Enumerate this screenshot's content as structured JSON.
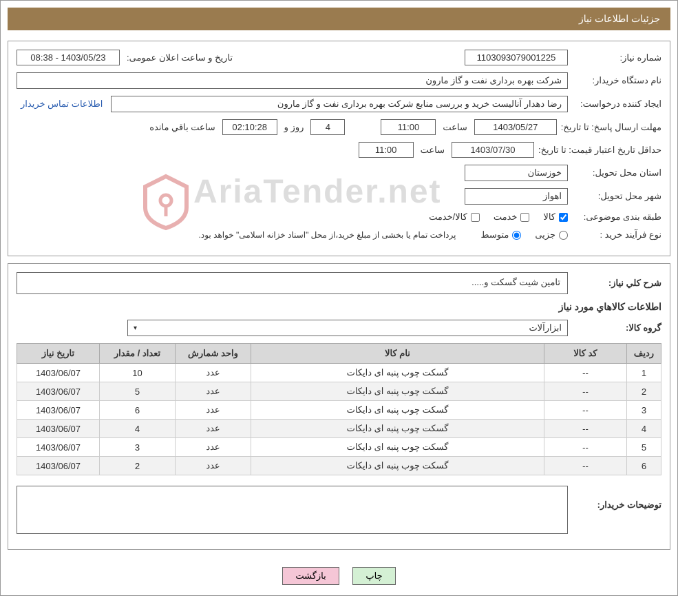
{
  "header": {
    "title": "جزئیات اطلاعات نیاز"
  },
  "form": {
    "need_number_label": "شماره نیاز:",
    "need_number": "1103093079001225",
    "announce_date_label": "تاریخ و ساعت اعلان عمومی:",
    "announce_date": "1403/05/23 - 08:38",
    "buyer_org_label": "نام دستگاه خریدار:",
    "buyer_org": "شرکت بهره برداری نفت و گاز مارون",
    "requester_label": "ایجاد کننده درخواست:",
    "requester": "رضا دهدار آنالیست خرید و بررسی منابع شرکت بهره برداری نفت و گاز مارون",
    "buyer_contact_link": "اطلاعات تماس خریدار",
    "response_deadline_label": "مهلت ارسال پاسخ: تا تاریخ:",
    "response_date": "1403/05/27",
    "time_label": "ساعت",
    "response_time": "11:00",
    "days_remaining": "4",
    "days_label": "روز و",
    "countdown": "02:10:28",
    "remaining_label": "ساعت باقي مانده",
    "price_validity_label": "حداقل تاریخ اعتبار قیمت: تا تاریخ:",
    "price_validity_date": "1403/07/30",
    "price_validity_time": "11:00",
    "delivery_province_label": "استان محل تحویل:",
    "delivery_province": "خوزستان",
    "delivery_city_label": "شهر محل تحویل:",
    "delivery_city": "اهواز",
    "classification_label": "طبقه بندی موضوعی:",
    "class_goods": "کالا",
    "class_service": "خدمت",
    "class_goods_service": "کالا/خدمت",
    "purchase_type_label": "نوع فرآیند خرید :",
    "purchase_type_partial": "جزیی",
    "purchase_type_medium": "متوسط",
    "payment_note": "پرداخت تمام یا بخشی از مبلغ خرید،از محل \"اسناد خزانه اسلامی\" خواهد بود."
  },
  "description": {
    "general_label": "شرح کلي نیاز:",
    "general_text": "تامین شیت گسکت و.....",
    "section_title": "اطلاعات کالاهاي مورد نیاز",
    "group_label": "گروه کالا:",
    "group_value": "ابزارآلات"
  },
  "table": {
    "columns": [
      "ردیف",
      "کد کالا",
      "نام کالا",
      "واحد شمارش",
      "تعداد / مقدار",
      "تاریخ نیاز"
    ],
    "col_widths": [
      "50px",
      "120px",
      "auto",
      "110px",
      "110px",
      "120px"
    ],
    "rows": [
      [
        "1",
        "--",
        "گسکت چوب پنبه ای دایکات",
        "عدد",
        "10",
        "1403/06/07"
      ],
      [
        "2",
        "--",
        "گسکت چوب پنبه ای دایکات",
        "عدد",
        "5",
        "1403/06/07"
      ],
      [
        "3",
        "--",
        "گسکت چوب پنبه ای دایکات",
        "عدد",
        "6",
        "1403/06/07"
      ],
      [
        "4",
        "--",
        "گسکت چوب پنبه ای دایکات",
        "عدد",
        "4",
        "1403/06/07"
      ],
      [
        "5",
        "--",
        "گسکت چوب پنبه ای دایکات",
        "عدد",
        "3",
        "1403/06/07"
      ],
      [
        "6",
        "--",
        "گسکت چوب پنبه ای دایکات",
        "عدد",
        "2",
        "1403/06/07"
      ]
    ]
  },
  "footer": {
    "buyer_notes_label": "توضیحات خریدار:",
    "buyer_notes": ""
  },
  "buttons": {
    "print": "چاپ",
    "back": "بازگشت"
  },
  "watermark": "AriaTender.net"
}
